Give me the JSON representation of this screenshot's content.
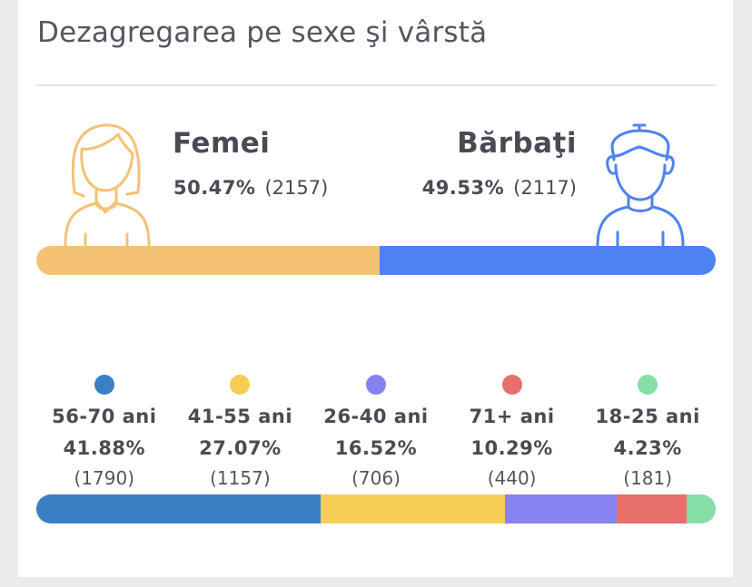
{
  "title": "Dezagregarea pe sexe şi vârstă",
  "colors": {
    "female": "#f3c274",
    "male": "#4e82f3"
  },
  "gender": [
    {
      "label": "Femei",
      "percent": "50.47%",
      "count": "(2157)",
      "value": 50.47,
      "icon": "woman-icon"
    },
    {
      "label": "Bărbaţi",
      "percent": "49.53%",
      "count": "(2117)",
      "value": 49.53,
      "icon": "man-icon"
    }
  ],
  "age_groups": [
    {
      "label": "56-70 ani",
      "percent": "41.88%",
      "count": "(1790)",
      "value": 41.88,
      "color": "#3a7fc4"
    },
    {
      "label": "41-55 ani",
      "percent": "27.07%",
      "count": "(1157)",
      "value": 27.07,
      "color": "#f5ce53"
    },
    {
      "label": "26-40 ani",
      "percent": "16.52%",
      "count": "(706)",
      "value": 16.52,
      "color": "#8682f2"
    },
    {
      "label": "71+ ani",
      "percent": "10.29%",
      "count": "(440)",
      "value": 10.29,
      "color": "#e86f6a"
    },
    {
      "label": "18-25 ani",
      "percent": "4.23%",
      "count": "(181)",
      "value": 4.23,
      "color": "#86dea5"
    }
  ],
  "chart_data": [
    {
      "type": "bar",
      "categories": [
        "Femei",
        "Bărbaţi"
      ],
      "values": [
        50.47,
        49.53
      ],
      "counts": [
        2157,
        2117
      ]
    },
    {
      "type": "bar",
      "categories": [
        "56-70 ani",
        "41-55 ani",
        "26-40 ani",
        "71+ ani",
        "18-25 ani"
      ],
      "values": [
        41.88,
        27.07,
        16.52,
        10.29,
        4.23
      ],
      "counts": [
        1790,
        1157,
        706,
        440,
        181
      ]
    }
  ]
}
